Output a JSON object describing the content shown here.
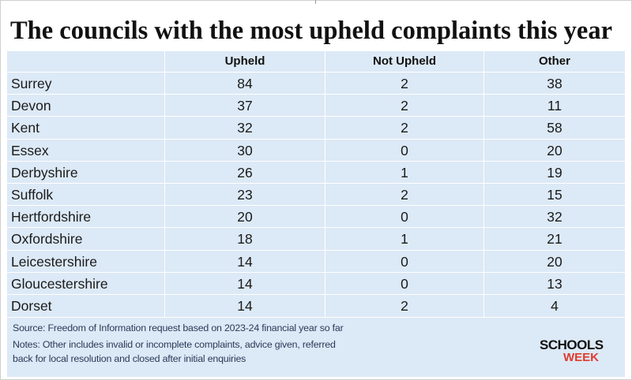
{
  "title": "The councils with the most upheld complaints this year",
  "chart_data": {
    "type": "table",
    "columns": [
      "Upheld",
      "Not Upheld",
      "Other"
    ],
    "rows": [
      {
        "council": "Surrey",
        "values": [
          "84",
          "2",
          "38"
        ]
      },
      {
        "council": "Devon",
        "values": [
          "37",
          "2",
          "11"
        ]
      },
      {
        "council": "Kent",
        "values": [
          "32",
          "2",
          "58"
        ]
      },
      {
        "council": "Essex",
        "values": [
          "30",
          "0",
          "20"
        ]
      },
      {
        "council": "Derbyshire",
        "values": [
          "26",
          "1",
          "19"
        ]
      },
      {
        "council": "Suffolk",
        "values": [
          "23",
          "2",
          "15"
        ]
      },
      {
        "council": "Hertfordshire",
        "values": [
          "20",
          "0",
          "32"
        ]
      },
      {
        "council": "Oxfordshire",
        "values": [
          "18",
          "1",
          "21"
        ]
      },
      {
        "council": "Leicestershire",
        "values": [
          "14",
          "0",
          "20"
        ]
      },
      {
        "council": "Gloucestershire",
        "values": [
          "14",
          "0",
          "13"
        ]
      },
      {
        "council": "Dorset",
        "values": [
          "14",
          "2",
          "4"
        ]
      }
    ]
  },
  "footer": {
    "source": "Source: Freedom of Information request based on 2023-24 financial year so far",
    "notes_line1": "Notes: Other includes invalid or incomplete complaints, advice given, referred",
    "notes_line2": "back for local resolution and closed after initial enquiries"
  },
  "logo": {
    "line1": "SCHOOLS",
    "line2": "WEEK"
  },
  "colors": {
    "panel": "#dce9f6",
    "title": "#111111",
    "note": "#2a3a5a",
    "logo_accent": "#e23a2e"
  }
}
